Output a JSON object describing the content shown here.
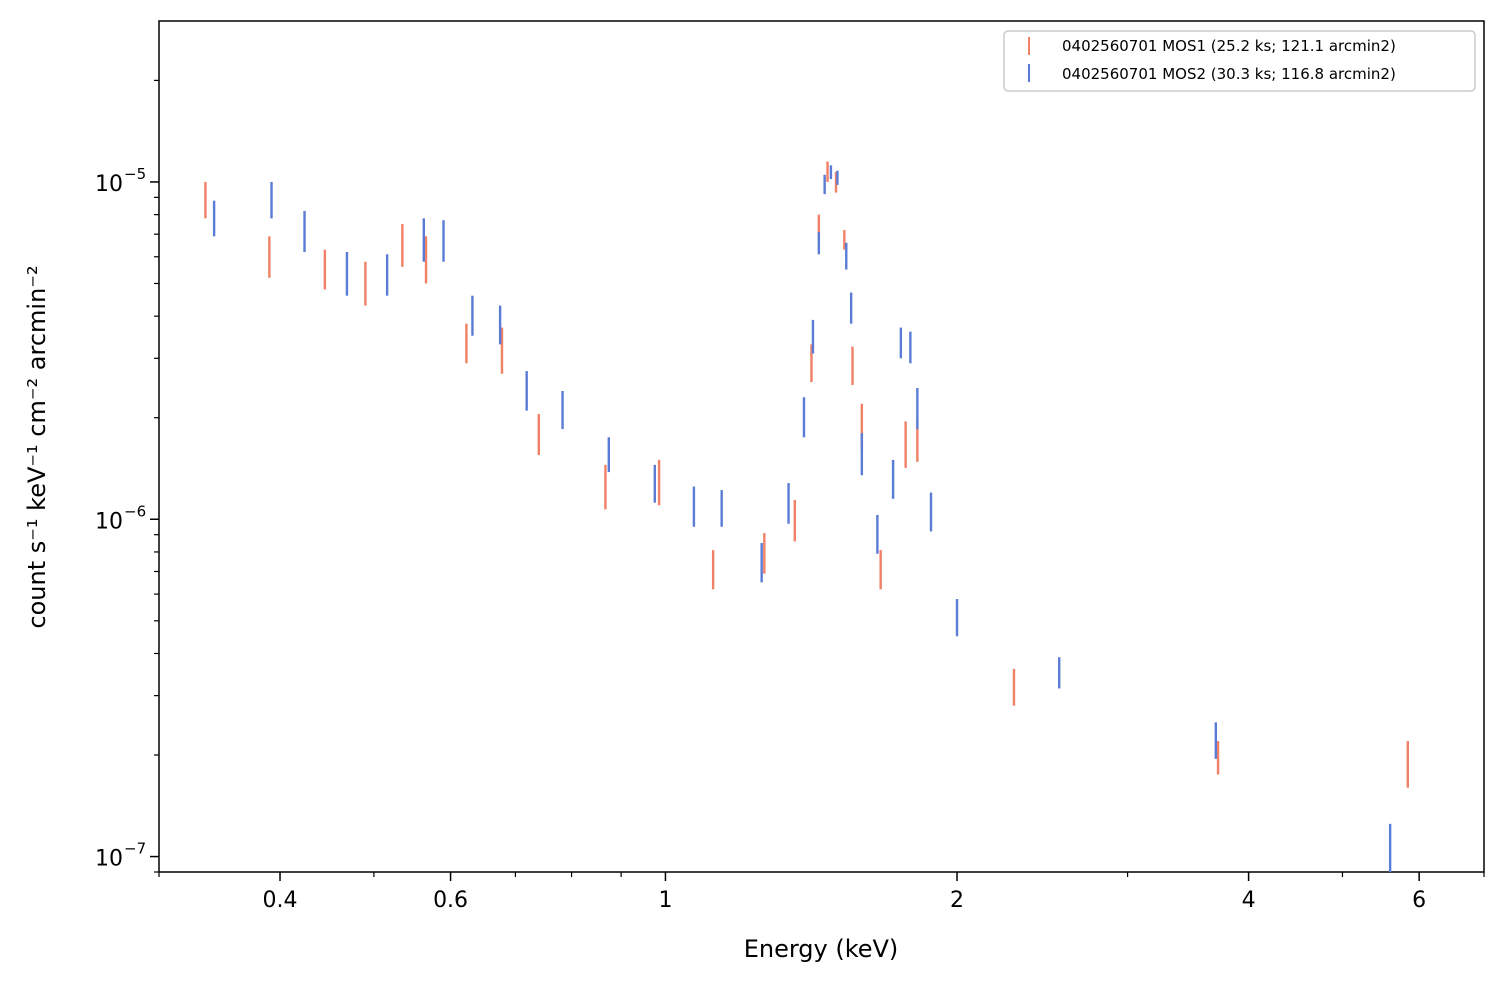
{
  "chart_data": {
    "type": "scatter",
    "xlabel": "Energy (keV)",
    "ylabel": "count s⁻¹ keV⁻¹ cm⁻² arcmin⁻²",
    "xscale": "log",
    "yscale": "log",
    "xlim": [
      0.3,
      7.0
    ],
    "ylim": [
      9e-08,
      3e-05
    ],
    "x_ticks": [
      {
        "value": 0.4,
        "label": "0.4"
      },
      {
        "value": 0.6,
        "label": "0.6"
      },
      {
        "value": 1,
        "label": "1"
      },
      {
        "value": 2,
        "label": "2"
      },
      {
        "value": 4,
        "label": "4"
      },
      {
        "value": 6,
        "label": "6"
      }
    ],
    "y_ticks": [
      {
        "value": 1e-07,
        "mantissa": "10",
        "exponent": "−7"
      },
      {
        "value": 1e-06,
        "mantissa": "10",
        "exponent": "−6"
      },
      {
        "value": 1e-05,
        "mantissa": "10",
        "exponent": "−5"
      }
    ],
    "grid": false,
    "legend_position": "top-right",
    "series": [
      {
        "name": "0402560701 MOS1 (25.2 ks; 121.1 arcmin2)",
        "color": "#f08066",
        "points": [
          {
            "x": 0.335,
            "lo": 7.8e-06,
            "hi": 1e-05
          },
          {
            "x": 0.39,
            "lo": 5.2e-06,
            "hi": 6.9e-06
          },
          {
            "x": 0.445,
            "lo": 4.8e-06,
            "hi": 6.3e-06
          },
          {
            "x": 0.49,
            "lo": 4.3e-06,
            "hi": 5.8e-06
          },
          {
            "x": 0.535,
            "lo": 5.6e-06,
            "hi": 7.5e-06
          },
          {
            "x": 0.566,
            "lo": 5e-06,
            "hi": 6.9e-06
          },
          {
            "x": 0.623,
            "lo": 2.9e-06,
            "hi": 3.8e-06
          },
          {
            "x": 0.678,
            "lo": 2.7e-06,
            "hi": 3.7e-06
          },
          {
            "x": 0.74,
            "lo": 1.55e-06,
            "hi": 2.05e-06
          },
          {
            "x": 0.867,
            "lo": 1.07e-06,
            "hi": 1.45e-06
          },
          {
            "x": 0.985,
            "lo": 1.1e-06,
            "hi": 1.5e-06
          },
          {
            "x": 1.12,
            "lo": 6.2e-07,
            "hi": 8.1e-07
          },
          {
            "x": 1.265,
            "lo": 6.9e-07,
            "hi": 9.1e-07
          },
          {
            "x": 1.36,
            "lo": 8.6e-07,
            "hi": 1.14e-06
          },
          {
            "x": 1.415,
            "lo": 2.55e-06,
            "hi": 3.3e-06
          },
          {
            "x": 1.44,
            "lo": 6.9e-06,
            "hi": 8e-06
          },
          {
            "x": 1.47,
            "lo": 1e-05,
            "hi": 1.15e-05
          },
          {
            "x": 1.5,
            "lo": 9.3e-06,
            "hi": 1.07e-05
          },
          {
            "x": 1.53,
            "lo": 6.3e-06,
            "hi": 7.2e-06
          },
          {
            "x": 1.56,
            "lo": 2.5e-06,
            "hi": 3.25e-06
          },
          {
            "x": 1.595,
            "lo": 1.6e-06,
            "hi": 2.2e-06
          },
          {
            "x": 1.668,
            "lo": 6.2e-07,
            "hi": 8.1e-07
          },
          {
            "x": 1.77,
            "lo": 1.42e-06,
            "hi": 1.95e-06
          },
          {
            "x": 1.82,
            "lo": 1.48e-06,
            "hi": 1.95e-06
          },
          {
            "x": 2.29,
            "lo": 2.8e-07,
            "hi": 3.6e-07
          },
          {
            "x": 3.72,
            "lo": 1.75e-07,
            "hi": 2.2e-07
          },
          {
            "x": 5.84,
            "lo": 1.6e-07,
            "hi": 2.2e-07
          }
        ]
      },
      {
        "name": "0402560701 MOS2 (30.3 ks; 116.8 arcmin2)",
        "color": "#5a7bd6",
        "points": [
          {
            "x": 0.342,
            "lo": 6.9e-06,
            "hi": 8.8e-06
          },
          {
            "x": 0.392,
            "lo": 7.8e-06,
            "hi": 1e-05
          },
          {
            "x": 0.424,
            "lo": 6.2e-06,
            "hi": 8.2e-06
          },
          {
            "x": 0.469,
            "lo": 4.6e-06,
            "hi": 6.2e-06
          },
          {
            "x": 0.516,
            "lo": 4.6e-06,
            "hi": 6.1e-06
          },
          {
            "x": 0.563,
            "lo": 5.8e-06,
            "hi": 7.8e-06
          },
          {
            "x": 0.59,
            "lo": 5.8e-06,
            "hi": 7.7e-06
          },
          {
            "x": 0.632,
            "lo": 3.5e-06,
            "hi": 4.6e-06
          },
          {
            "x": 0.675,
            "lo": 3.3e-06,
            "hi": 4.3e-06
          },
          {
            "x": 0.719,
            "lo": 2.1e-06,
            "hi": 2.75e-06
          },
          {
            "x": 0.783,
            "lo": 1.85e-06,
            "hi": 2.4e-06
          },
          {
            "x": 0.874,
            "lo": 1.38e-06,
            "hi": 1.75e-06
          },
          {
            "x": 0.975,
            "lo": 1.12e-06,
            "hi": 1.45e-06
          },
          {
            "x": 1.07,
            "lo": 9.5e-07,
            "hi": 1.25e-06
          },
          {
            "x": 1.143,
            "lo": 9.5e-07,
            "hi": 1.22e-06
          },
          {
            "x": 1.257,
            "lo": 6.5e-07,
            "hi": 8.5e-07
          },
          {
            "x": 1.34,
            "lo": 9.7e-07,
            "hi": 1.28e-06
          },
          {
            "x": 1.39,
            "lo": 1.75e-06,
            "hi": 2.3e-06
          },
          {
            "x": 1.42,
            "lo": 3.1e-06,
            "hi": 3.9e-06
          },
          {
            "x": 1.44,
            "lo": 6.1e-06,
            "hi": 7.1e-06
          },
          {
            "x": 1.46,
            "lo": 9.2e-06,
            "hi": 1.05e-05
          },
          {
            "x": 1.482,
            "lo": 1.02e-05,
            "hi": 1.12e-05
          },
          {
            "x": 1.505,
            "lo": 9.8e-06,
            "hi": 1.08e-05
          },
          {
            "x": 1.537,
            "lo": 5.5e-06,
            "hi": 6.6e-06
          },
          {
            "x": 1.555,
            "lo": 3.8e-06,
            "hi": 4.7e-06
          },
          {
            "x": 1.595,
            "lo": 1.35e-06,
            "hi": 1.8e-06
          },
          {
            "x": 1.655,
            "lo": 7.9e-07,
            "hi": 1.03e-06
          },
          {
            "x": 1.718,
            "lo": 1.15e-06,
            "hi": 1.5e-06
          },
          {
            "x": 1.75,
            "lo": 3e-06,
            "hi": 3.7e-06
          },
          {
            "x": 1.79,
            "lo": 2.9e-06,
            "hi": 3.6e-06
          },
          {
            "x": 1.82,
            "lo": 1.85e-06,
            "hi": 2.45e-06
          },
          {
            "x": 1.88,
            "lo": 9.2e-07,
            "hi": 1.2e-06
          },
          {
            "x": 2.0,
            "lo": 4.5e-07,
            "hi": 5.8e-07
          },
          {
            "x": 2.55,
            "lo": 3.15e-07,
            "hi": 3.9e-07
          },
          {
            "x": 3.7,
            "lo": 1.95e-07,
            "hi": 2.5e-07
          },
          {
            "x": 5.6,
            "lo": 9e-08,
            "hi": 1.25e-07
          }
        ]
      }
    ]
  }
}
